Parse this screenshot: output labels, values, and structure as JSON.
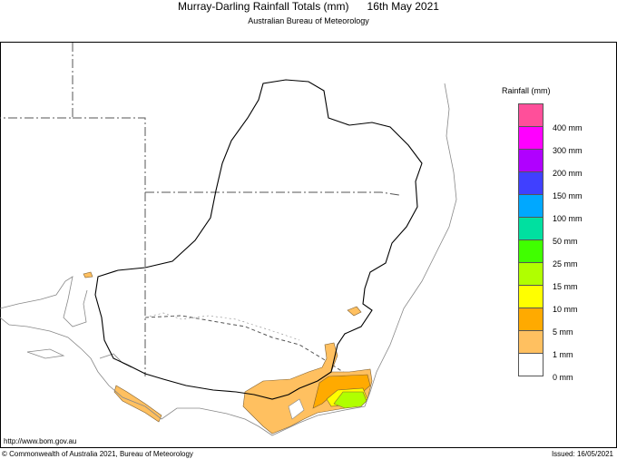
{
  "header": {
    "title": "Murray-Darling Rainfall Totals (mm)      16th May 2021",
    "subtitle": "Australian Bureau of Meteorology"
  },
  "legend": {
    "title": "Rainfall (mm)",
    "colors": [
      "#ff4f9a",
      "#ff00ff",
      "#b000ff",
      "#4040ff",
      "#00a8ff",
      "#00e0a0",
      "#40ff00",
      "#b0ff00",
      "#ffff00",
      "#ffaa00",
      "#ffc060",
      "#ffffff"
    ],
    "labels": [
      "400 mm",
      "300 mm",
      "200 mm",
      "150 mm",
      "100 mm",
      "50 mm",
      "25 mm",
      "15 mm",
      "10 mm",
      "5 mm",
      "1 mm",
      "0 mm"
    ]
  },
  "footer": {
    "url": "http://www.bom.gov.au",
    "copyright": "© Commonwealth of Australia 2021, Bureau of Meteorology",
    "issued": "Issued: 16/05/2021"
  }
}
